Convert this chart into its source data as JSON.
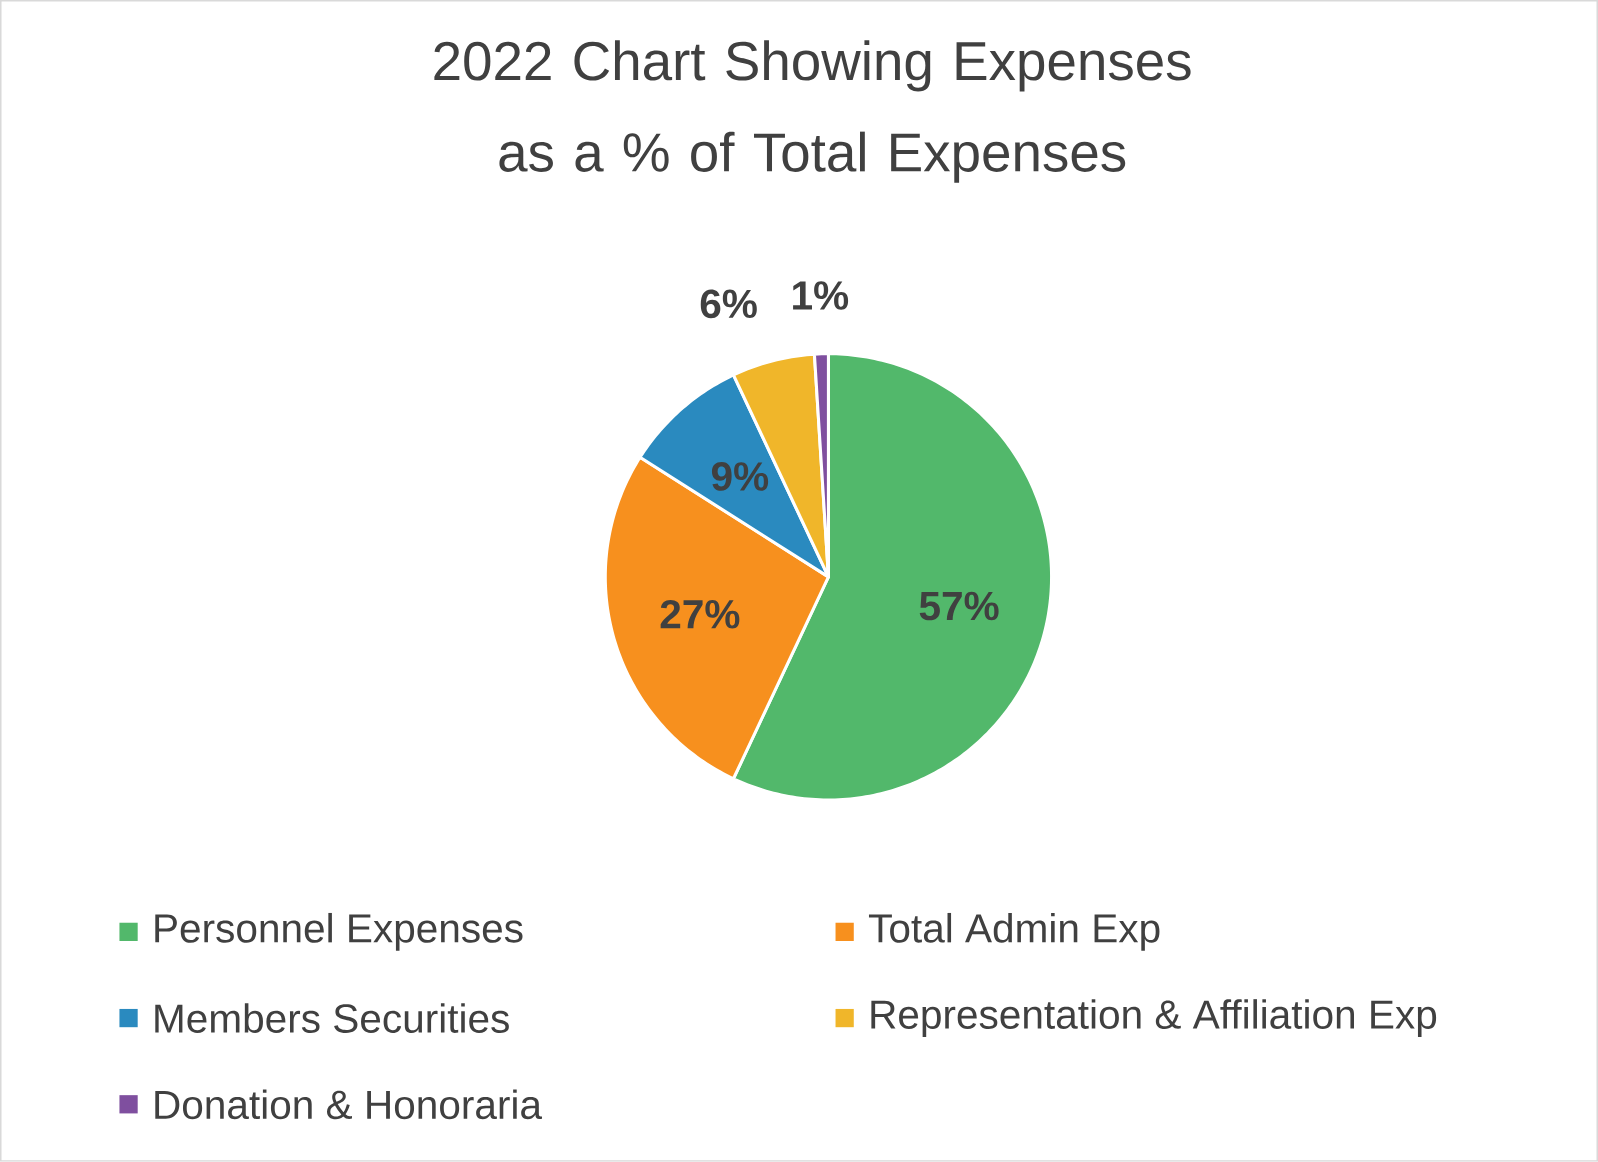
{
  "chart_data": {
    "type": "pie",
    "title": "2022 Chart Showing Expenses as a % of Total Expenses",
    "categories": [
      "Personnel Expenses",
      "Total Admin Exp",
      "Members Securities",
      "Representation & Affiliation Exp",
      "Donation & Honoraria"
    ],
    "values": [
      57,
      27,
      9,
      6,
      1
    ],
    "value_labels": [
      "57%",
      "27%",
      "9%",
      "6%",
      "1%"
    ],
    "colors": [
      "#52b86b",
      "#f7901e",
      "#2a8abf",
      "#f0b62a",
      "#7f4f9f"
    ],
    "legend": "bottom"
  }
}
